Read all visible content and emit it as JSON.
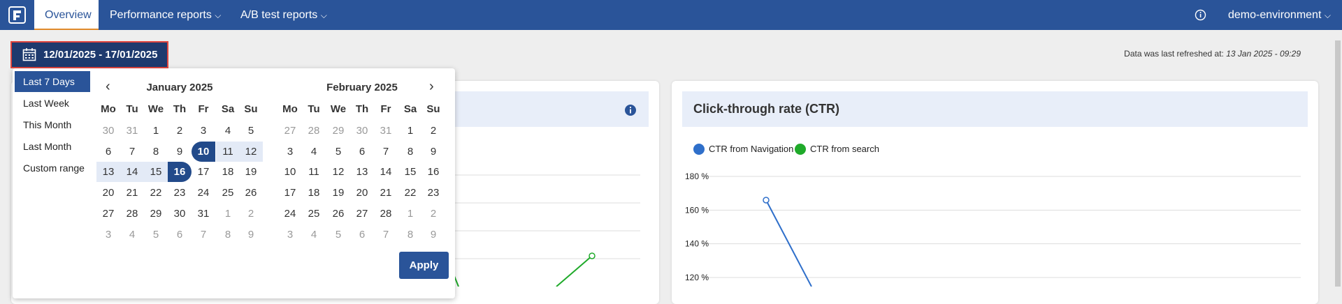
{
  "nav": {
    "tabs": [
      "Overview",
      "Performance reports",
      "A/B test reports"
    ],
    "environment": "demo-environment"
  },
  "date_button": "12/01/2025 - 17/01/2025",
  "refresh": {
    "label": "Data was last refreshed at:",
    "time": "13 Jan 2025 - 09:29"
  },
  "ranges": [
    "Last 7 Days",
    "Last Week",
    "This Month",
    "Last Month",
    "Custom range"
  ],
  "weekdays": [
    "Mo",
    "Tu",
    "We",
    "Th",
    "Fr",
    "Sa",
    "Su"
  ],
  "calendars": [
    {
      "title": "January 2025",
      "weeks": [
        [
          30,
          31,
          1,
          2,
          3,
          4,
          5
        ],
        [
          6,
          7,
          8,
          9,
          10,
          11,
          12
        ],
        [
          13,
          14,
          15,
          16,
          17,
          18,
          19
        ],
        [
          20,
          21,
          22,
          23,
          24,
          25,
          26
        ],
        [
          27,
          28,
          29,
          30,
          31,
          1,
          2
        ],
        [
          3,
          4,
          5,
          6,
          7,
          8,
          9
        ]
      ]
    },
    {
      "title": "February 2025",
      "weeks": [
        [
          27,
          28,
          29,
          30,
          31,
          1,
          2
        ],
        [
          3,
          4,
          5,
          6,
          7,
          8,
          9
        ],
        [
          10,
          11,
          12,
          13,
          14,
          15,
          16
        ],
        [
          17,
          18,
          19,
          20,
          21,
          22,
          23
        ],
        [
          24,
          25,
          26,
          27,
          28,
          1,
          2
        ],
        [
          3,
          4,
          5,
          6,
          7,
          8,
          9
        ]
      ]
    }
  ],
  "apply": "Apply",
  "ctr_chart": {
    "title": "Click-through rate (CTR)",
    "series": [
      {
        "name": "CTR from Navigation",
        "color": "#2f6fca"
      },
      {
        "name": "CTR from search",
        "color": "#1faa2a"
      }
    ],
    "yticks": [
      {
        "value": 180,
        "label": "180 %"
      },
      {
        "value": 160,
        "label": "160 %"
      },
      {
        "value": 140,
        "label": "140 %"
      },
      {
        "value": 120,
        "label": "120 %"
      }
    ]
  }
}
